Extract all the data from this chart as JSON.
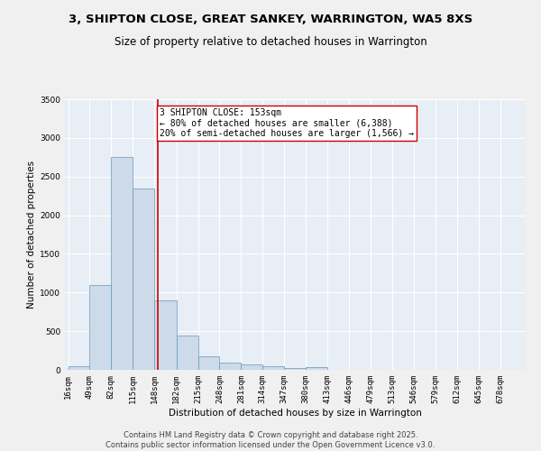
{
  "title_line1": "3, SHIPTON CLOSE, GREAT SANKEY, WARRINGTON, WA5 8XS",
  "title_line2": "Size of property relative to detached houses in Warrington",
  "xlabel": "Distribution of detached houses by size in Warrington",
  "ylabel": "Number of detached properties",
  "bin_edges": [
    16,
    49,
    82,
    115,
    148,
    182,
    215,
    248,
    281,
    314,
    347,
    380,
    413,
    446,
    479,
    513,
    546,
    579,
    612,
    645,
    678,
    711
  ],
  "bar_heights": [
    50,
    1100,
    2750,
    2350,
    900,
    440,
    170,
    95,
    75,
    45,
    20,
    30,
    0,
    0,
    0,
    0,
    0,
    0,
    0,
    0,
    0
  ],
  "bar_color": "#ccdaea",
  "bar_edgecolor": "#6699bb",
  "bg_color": "#e8eef5",
  "grid_color": "#ffffff",
  "vline_x": 153,
  "vline_color": "#cc0000",
  "annotation_text": "3 SHIPTON CLOSE: 153sqm\n← 80% of detached houses are smaller (6,388)\n20% of semi-detached houses are larger (1,566) →",
  "annotation_box_edgecolor": "#cc0000",
  "annotation_box_facecolor": "#ffffff",
  "ylim": [
    0,
    3500
  ],
  "yticks": [
    0,
    500,
    1000,
    1500,
    2000,
    2500,
    3000,
    3500
  ],
  "xtick_labels": [
    "16sqm",
    "49sqm",
    "82sqm",
    "115sqm",
    "148sqm",
    "182sqm",
    "215sqm",
    "248sqm",
    "281sqm",
    "314sqm",
    "347sqm",
    "380sqm",
    "413sqm",
    "446sqm",
    "479sqm",
    "513sqm",
    "546sqm",
    "579sqm",
    "612sqm",
    "645sqm",
    "678sqm"
  ],
  "footer_line1": "Contains HM Land Registry data © Crown copyright and database right 2025.",
  "footer_line2": "Contains public sector information licensed under the Open Government Licence v3.0.",
  "title_fontsize": 9.5,
  "subtitle_fontsize": 8.5,
  "axis_label_fontsize": 7.5,
  "tick_fontsize": 6.5,
  "annotation_fontsize": 7,
  "footer_fontsize": 6
}
